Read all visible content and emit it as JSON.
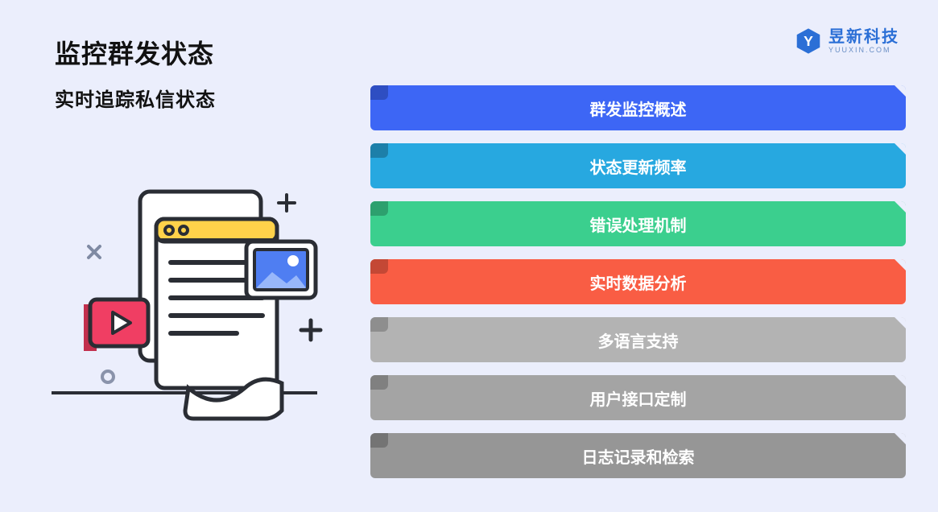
{
  "page": {
    "background": "#ebeefc"
  },
  "title": {
    "main": "监控群发状态",
    "sub": "实时追踪私信状态"
  },
  "logo": {
    "cn": "昱新科技",
    "en": "YUUXIN.COM",
    "hex_fill": "#2b6fd6",
    "letter": "Y"
  },
  "bars": [
    {
      "label": "群发监控概述",
      "bg": "#3d66f5",
      "notch": "#2e4ec2"
    },
    {
      "label": "状态更新频率",
      "bg": "#27a8e0",
      "notch": "#1d7fa9"
    },
    {
      "label": "错误处理机制",
      "bg": "#3bcf8e",
      "notch": "#2da06e"
    },
    {
      "label": "实时数据分析",
      "bg": "#f95d44",
      "notch": "#c44835"
    },
    {
      "label": "多语言支持",
      "bg": "#b3b3b3",
      "notch": "#8e8e8e"
    },
    {
      "label": "用户接口定制",
      "bg": "#a4a4a4",
      "notch": "#808080"
    },
    {
      "label": "日志记录和检索",
      "bg": "#969696",
      "notch": "#747474"
    }
  ],
  "illustration": {
    "stroke": "#2a2d34",
    "back_card_fill": "#ffffff",
    "doc_fill": "#ffffff",
    "doc_header": "#ffd24a",
    "doc_header_dark": "#e0b838",
    "line_color": "#2a2d34",
    "image_frame_fill": "#ffffff",
    "image_sky": "#4f7ef2",
    "image_mountain": "#98b7fa",
    "image_sun": "#ffffff",
    "video_fill": "#f03e63",
    "video_side": "#c22f4d",
    "play_fill": "#ffffff",
    "baseline": "#2a2d34",
    "plus_color": "#2a2d34",
    "x_color": "#7f8aa3",
    "circle_color": "#8a93ab"
  }
}
